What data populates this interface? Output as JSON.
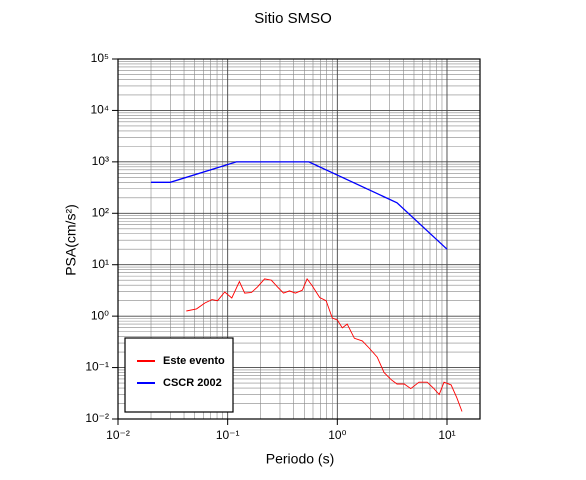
{
  "chart_data": {
    "type": "line",
    "title": "Sitio SMSO",
    "x_label": "Periodo (s)",
    "y_label": "PSA(cm/s²)",
    "xscale": "log",
    "yscale": "log",
    "grid": true,
    "minor_grid": true,
    "legend": "lower left",
    "xlim": [
      0.01,
      20
    ],
    "ylim": [
      0.01,
      100000
    ],
    "xticks": [
      {
        "value": 0.01,
        "label": "10⁻²"
      },
      {
        "value": 0.1,
        "label": "10⁻¹"
      },
      {
        "value": 1,
        "label": "10⁰"
      },
      {
        "value": 10,
        "label": "10¹"
      }
    ],
    "yticks": [
      {
        "value": 0.01,
        "label": "10⁻²"
      },
      {
        "value": 0.1,
        "label": "10⁻¹"
      },
      {
        "value": 1,
        "label": "10⁰"
      },
      {
        "value": 10,
        "label": "10¹"
      },
      {
        "value": 100,
        "label": "10²"
      },
      {
        "value": 1000,
        "label": "10³"
      },
      {
        "value": 10000,
        "label": "10⁴"
      },
      {
        "value": 100000,
        "label": "10⁵"
      }
    ],
    "series": [
      {
        "name": "Este evento",
        "color": "#ff0000",
        "x": [
          0.042,
          0.052,
          0.062,
          0.072,
          0.081,
          0.094,
          0.109,
          0.128,
          0.143,
          0.165,
          0.187,
          0.217,
          0.25,
          0.285,
          0.323,
          0.366,
          0.415,
          0.48,
          0.53,
          0.59,
          0.69,
          0.79,
          0.9,
          1.0,
          1.11,
          1.23,
          1.43,
          1.69,
          1.95,
          2.31,
          2.67,
          3.1,
          3.5,
          4.07,
          4.68,
          5.56,
          6.6,
          7.6,
          8.5,
          9.4,
          10.9,
          12.3,
          13.7
        ],
        "values": [
          1.26,
          1.38,
          1.8,
          2.1,
          2.0,
          2.95,
          2.25,
          4.7,
          2.8,
          2.9,
          3.7,
          5.3,
          5.0,
          3.7,
          2.8,
          3.1,
          2.8,
          3.2,
          5.3,
          3.9,
          2.3,
          2.0,
          0.92,
          0.84,
          0.59,
          0.7,
          0.37,
          0.33,
          0.24,
          0.16,
          0.08,
          0.058,
          0.048,
          0.048,
          0.039,
          0.052,
          0.052,
          0.039,
          0.03,
          0.052,
          0.046,
          0.026,
          0.014
        ]
      },
      {
        "name": "CSCR 2002",
        "color": "#0000ff",
        "x": [
          0.02,
          0.03,
          0.12,
          0.55,
          3.5,
          10
        ],
        "values": [
          400,
          400,
          1000,
          1000,
          160,
          20
        ]
      }
    ]
  }
}
